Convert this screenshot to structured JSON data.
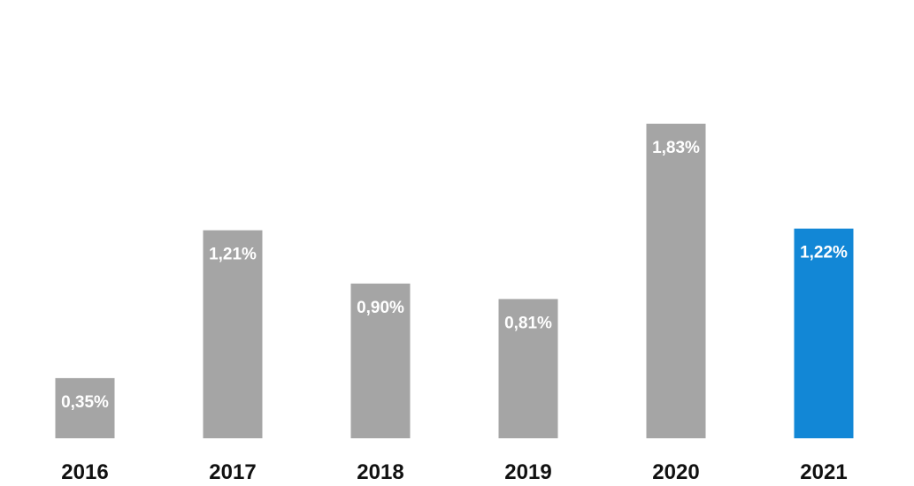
{
  "chart_data": {
    "type": "bar",
    "categories": [
      "2016",
      "2017",
      "2018",
      "2019",
      "2020",
      "2021"
    ],
    "values": [
      0.35,
      1.21,
      0.9,
      0.81,
      1.83,
      1.22
    ],
    "data_labels": [
      "0,35%",
      "1,21%",
      "0,90%",
      "0,81%",
      "1,83%",
      "1,22%"
    ],
    "title": "",
    "xlabel": "",
    "ylabel": "",
    "ylim": [
      0,
      2.55
    ],
    "grid": false,
    "legend": "none",
    "colors": {
      "default_bar": "#a5a5a5",
      "highlight_bar": "#1287d6",
      "label_text": "#ffffff",
      "tick_text": "#111111"
    },
    "highlight_index": 5
  }
}
